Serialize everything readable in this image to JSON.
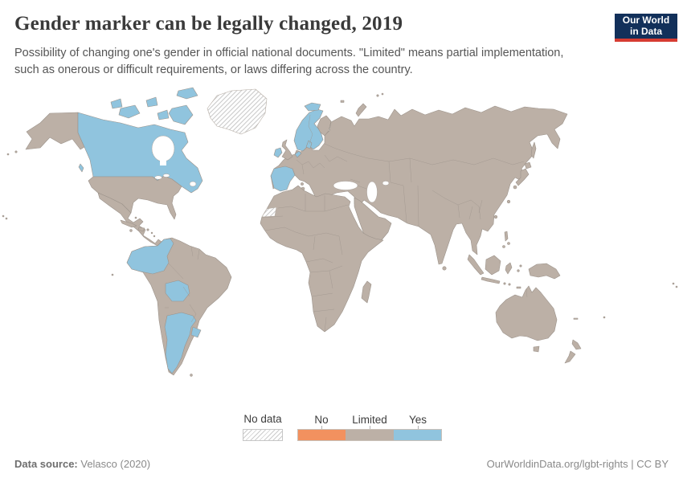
{
  "header": {
    "title": "Gender marker can be legally changed, 2019",
    "subtitle": "Possibility of changing one's gender in official national documents. \"Limited\" means partial implementation, such as onerous or difficult requirements, or laws differing across the country.",
    "logo": {
      "line1": "Our World",
      "line2": "in Data"
    }
  },
  "legend": {
    "no_data": {
      "label": "No data"
    },
    "categories": [
      {
        "label": "No",
        "color": "#f2915f"
      },
      {
        "label": "Limited",
        "color": "#bcb0a6"
      },
      {
        "label": "Yes",
        "color": "#90c4de"
      }
    ]
  },
  "footer": {
    "source_label": "Data source:",
    "source_value": " Velasco (2020)",
    "credit": "OurWorldinData.org/lgbt-rights | CC BY"
  },
  "chart_data": {
    "type": "choropleth_map",
    "title": "Gender marker can be legally changed, 2019",
    "year": 2019,
    "legend_categories": [
      "No data",
      "No",
      "Limited",
      "Yes"
    ],
    "default_status": "Limited",
    "regions": {
      "canada": "Yes",
      "canadian-arctic-islands": "Yes",
      "vancouver-island": "Yes",
      "greenland": "No data",
      "alaska-united-states": "Limited",
      "united-states": "Limited",
      "mexico-central-america": "Limited",
      "cuba": "Limited",
      "hispaniola": "Limited",
      "south-america": "Limited",
      "colombia-ecuador": "Yes",
      "bolivia": "Yes",
      "argentina": "Yes",
      "uruguay": "Yes",
      "eurasia": "Limited",
      "arabia": "Limited",
      "africa": "Limited",
      "western-sahara": "No data",
      "united-kingdom": "Limited",
      "ireland": "Yes",
      "iceland": "Yes",
      "norway-sweden": "Yes",
      "denmark": "Yes",
      "netherlands-belgium": "Yes",
      "spain-portugal": "Yes",
      "finland": "Limited",
      "madagascar": "Limited",
      "japan": "Limited",
      "sakhalin": "Limited",
      "southeast-asian-islands": "Limited",
      "philippines": "Limited",
      "new-guinea": "Limited",
      "australia": "Limited",
      "tasmania": "Limited",
      "new-zealand": "Limited",
      "small-islands": "Limited",
      "svalbard": "Limited",
      "novaya-zemlya": "Limited"
    },
    "map_style": {
      "border_color": "#9c938b",
      "sea_color": "#ffffff",
      "no_data_hatch_color": "#c9c9c9"
    }
  }
}
